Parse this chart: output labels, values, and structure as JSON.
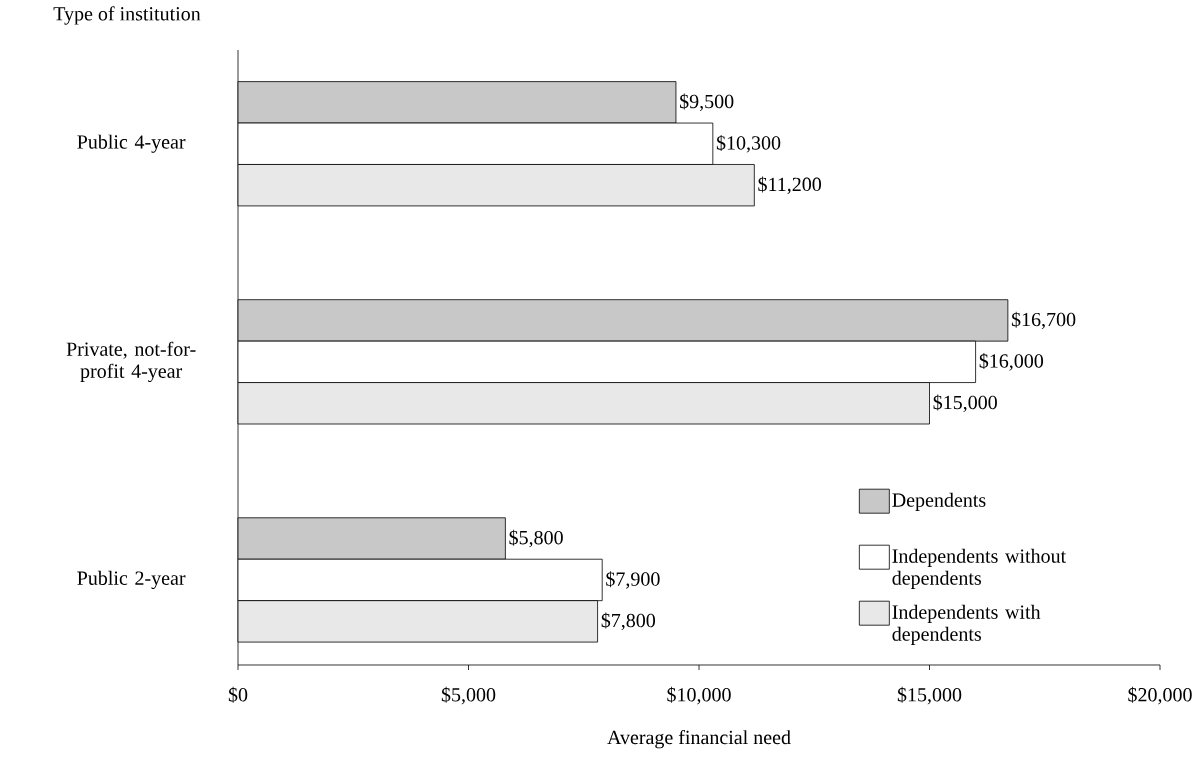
{
  "chart_data": {
    "type": "bar",
    "orientation": "horizontal",
    "xlabel": "Average financial need",
    "ylabel": "Type of institution",
    "categories": [
      "Public 4-year",
      "Private, not-for-profit 4-year",
      "Public 2-year"
    ],
    "series": [
      {
        "name": "Dependents",
        "color": "#c8c8c8",
        "values": [
          9500,
          16700,
          5800
        ],
        "value_labels": [
          "$9,500",
          "$16,700",
          "$5,800"
        ]
      },
      {
        "name": "Independents without dependents",
        "color": "#ffffff",
        "values": [
          10300,
          16000,
          7900
        ],
        "value_labels": [
          "$10,300",
          "$16,000",
          "$7,900"
        ]
      },
      {
        "name": "Independents with dependents",
        "color": "#e8e8e8",
        "values": [
          11200,
          15000,
          7800
        ],
        "value_labels": [
          "$11,200",
          "$15,000",
          "$7,800"
        ]
      }
    ],
    "xlim": [
      0,
      20000
    ],
    "xticks": [
      {
        "value": 0,
        "label": "$0"
      },
      {
        "value": 5000,
        "label": "$5,000"
      },
      {
        "value": 10000,
        "label": "$10,000"
      },
      {
        "value": 15000,
        "label": "$15,000"
      },
      {
        "value": 20000,
        "label": "$20,000"
      }
    ],
    "grid": false,
    "legend": "bottom right"
  }
}
